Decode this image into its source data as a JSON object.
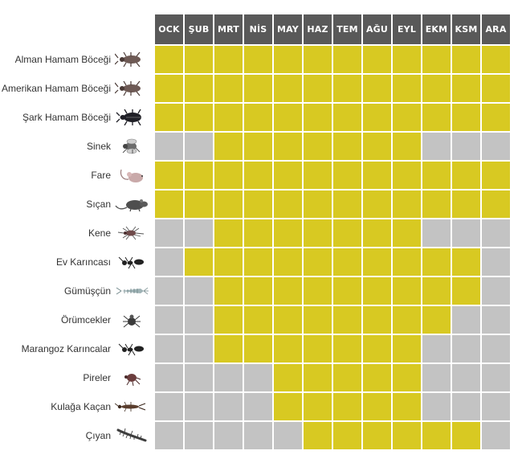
{
  "colors": {
    "active": "#d8c922",
    "inactive": "#c3c3c3",
    "header": "#595959",
    "header_text": "#ffffff"
  },
  "chart_data": {
    "type": "heatmap",
    "months": [
      "OCK",
      "ŞUB",
      "MRT",
      "NİS",
      "MAY",
      "HAZ",
      "TEM",
      "AĞU",
      "EYL",
      "EKM",
      "KSM",
      "ARA"
    ],
    "rows": [
      {
        "name": "Alman Hamam Böceği",
        "icon": "cockroach-icon",
        "active": [
          1,
          1,
          1,
          1,
          1,
          1,
          1,
          1,
          1,
          1,
          1,
          1
        ]
      },
      {
        "name": "Amerikan Hamam Böceği",
        "icon": "cockroach-icon",
        "active": [
          1,
          1,
          1,
          1,
          1,
          1,
          1,
          1,
          1,
          1,
          1,
          1
        ]
      },
      {
        "name": "Şark Hamam Böceği",
        "icon": "beetle-icon",
        "active": [
          1,
          1,
          1,
          1,
          1,
          1,
          1,
          1,
          1,
          1,
          1,
          1
        ]
      },
      {
        "name": "Sinek",
        "icon": "fly-icon",
        "active": [
          0,
          0,
          1,
          1,
          1,
          1,
          1,
          1,
          1,
          0,
          0,
          0
        ]
      },
      {
        "name": "Fare",
        "icon": "mouse-icon",
        "active": [
          1,
          1,
          1,
          1,
          1,
          1,
          1,
          1,
          1,
          1,
          1,
          1
        ]
      },
      {
        "name": "Sıçan",
        "icon": "rat-icon",
        "active": [
          1,
          1,
          1,
          1,
          1,
          1,
          1,
          1,
          1,
          1,
          1,
          1
        ]
      },
      {
        "name": "Kene",
        "icon": "tick-icon",
        "active": [
          0,
          0,
          1,
          1,
          1,
          1,
          1,
          1,
          1,
          0,
          0,
          0
        ]
      },
      {
        "name": "Ev Karıncası",
        "icon": "ant-icon",
        "active": [
          0,
          1,
          1,
          1,
          1,
          1,
          1,
          1,
          1,
          1,
          1,
          0
        ]
      },
      {
        "name": "Gümüşçün",
        "icon": "silverfish-icon",
        "active": [
          0,
          0,
          1,
          1,
          1,
          1,
          1,
          1,
          1,
          1,
          1,
          0
        ]
      },
      {
        "name": "Örümcekler",
        "icon": "spider-icon",
        "active": [
          0,
          0,
          1,
          1,
          1,
          1,
          1,
          1,
          1,
          1,
          0,
          0
        ]
      },
      {
        "name": "Marangoz Karıncalar",
        "icon": "ant-icon",
        "active": [
          0,
          0,
          1,
          1,
          1,
          1,
          1,
          1,
          1,
          0,
          0,
          0
        ]
      },
      {
        "name": "Pireler",
        "icon": "flea-icon",
        "active": [
          0,
          0,
          0,
          0,
          1,
          1,
          1,
          1,
          1,
          0,
          0,
          0
        ]
      },
      {
        "name": "Kulağa Kaçan",
        "icon": "earwig-icon",
        "active": [
          0,
          0,
          0,
          0,
          1,
          1,
          1,
          1,
          1,
          0,
          0,
          0
        ]
      },
      {
        "name": "Çıyan",
        "icon": "centipede-icon",
        "active": [
          0,
          0,
          0,
          0,
          0,
          1,
          1,
          1,
          1,
          1,
          1,
          0
        ]
      }
    ]
  }
}
